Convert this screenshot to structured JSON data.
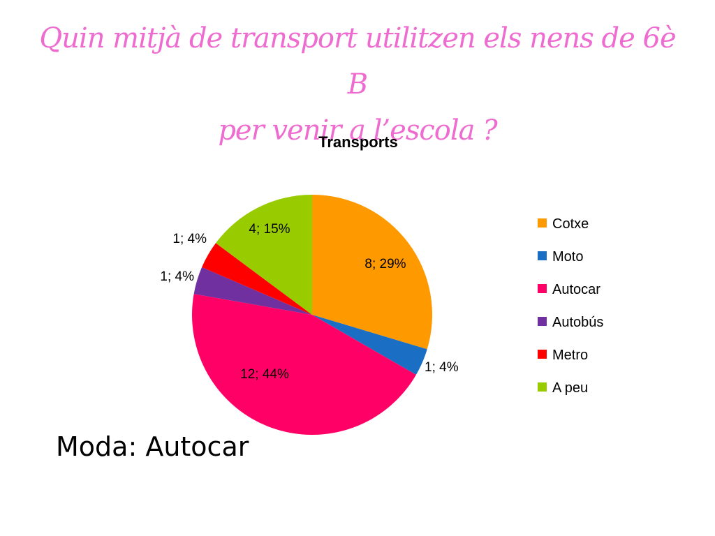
{
  "slide": {
    "title_line1": "Quin mitjà de transport utilitzen els nens de 6è B",
    "title_line2": "per venir a l’escola ?",
    "footer_text": "Moda: Autocar"
  },
  "chart_data": {
    "type": "pie",
    "title": "Transports",
    "legend_position": "right",
    "start_angle_deg": 0,
    "direction": "clockwise",
    "categories": [
      "Cotxe",
      "Moto",
      "Autocar",
      "Autobús",
      "Metro",
      "A peu"
    ],
    "values": [
      8,
      1,
      12,
      1,
      1,
      4
    ],
    "labels": [
      "8; 29%",
      "1; 4%",
      "12; 44%",
      "1; 4%",
      "1; 4%",
      "4; 15%"
    ],
    "colors": [
      "#ff9900",
      "#1a6fc4",
      "#ff0066",
      "#7030a0",
      "#ff0000",
      "#99cc00"
    ]
  }
}
